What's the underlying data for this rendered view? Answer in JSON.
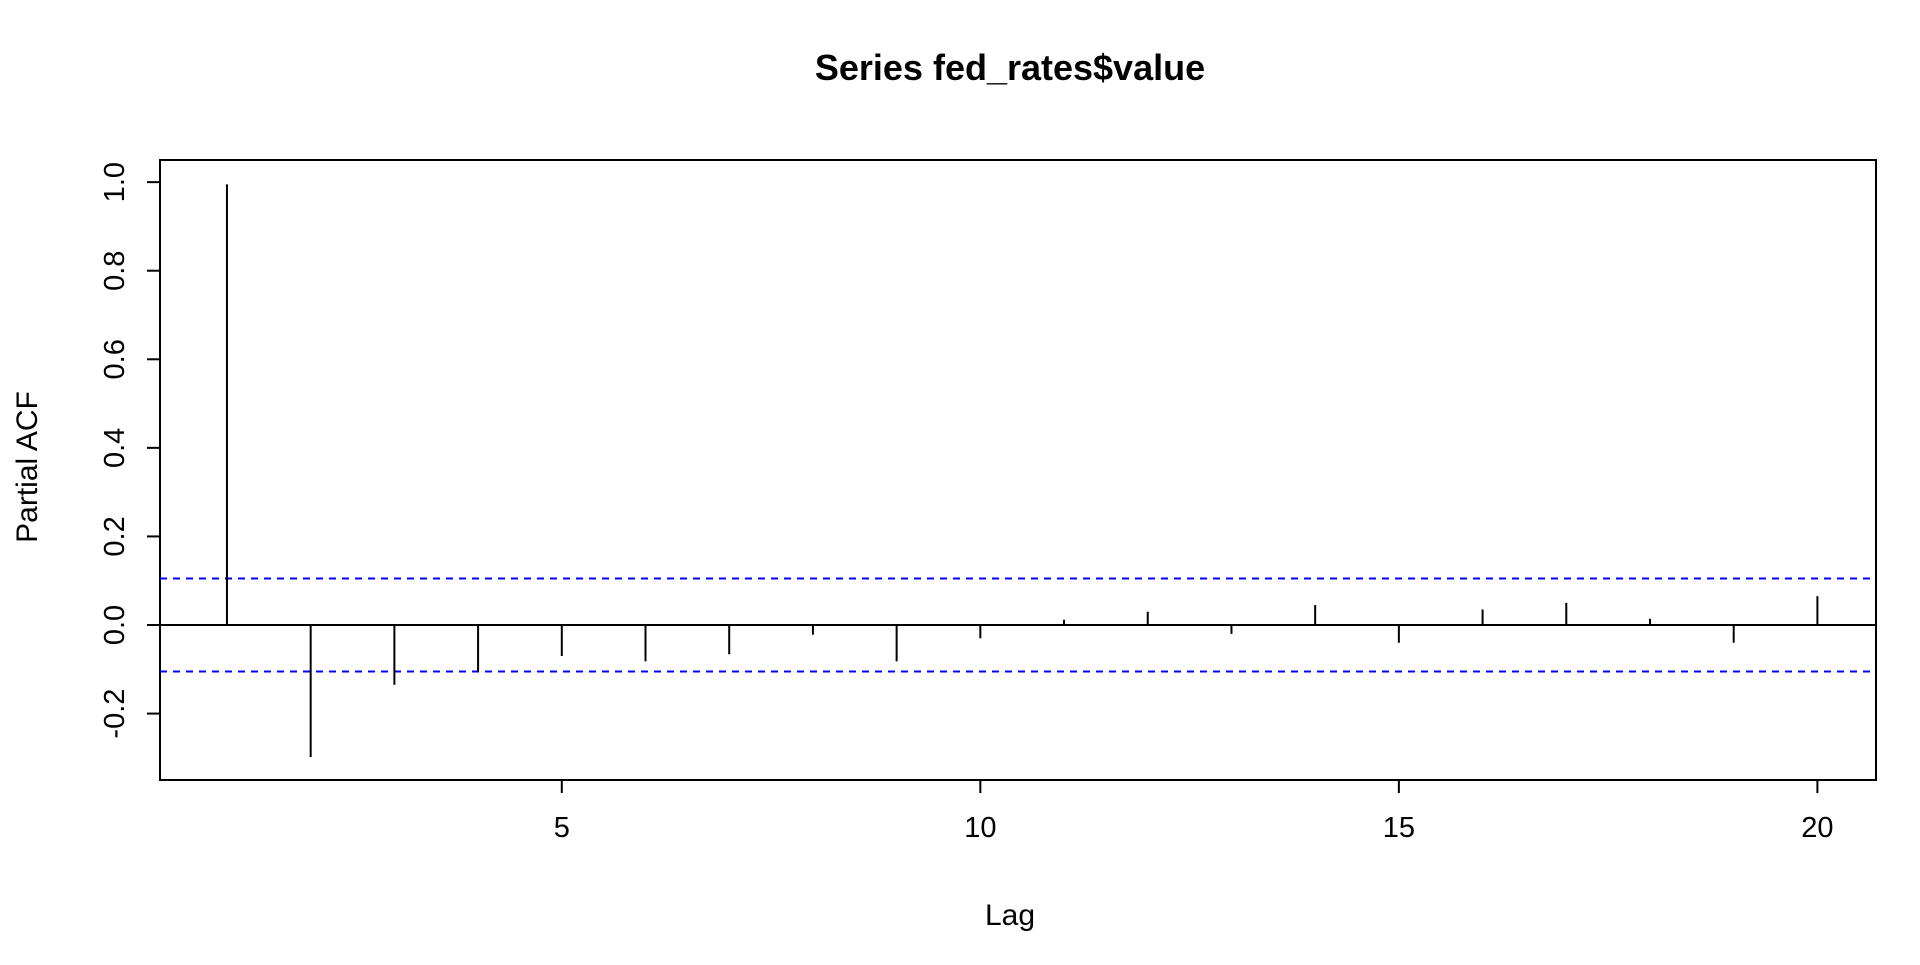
{
  "chart_data": {
    "type": "bar",
    "title": "Series  fed_rates$value",
    "xlabel": "Lag",
    "ylabel": "Partial ACF",
    "x": [
      1,
      2,
      3,
      4,
      5,
      6,
      7,
      8,
      9,
      10,
      11,
      12,
      13,
      14,
      15,
      16,
      17,
      18,
      19,
      20
    ],
    "values": [
      0.995,
      -0.298,
      -0.135,
      -0.107,
      -0.07,
      -0.082,
      -0.066,
      -0.022,
      -0.082,
      -0.03,
      0.012,
      0.03,
      -0.02,
      0.045,
      -0.04,
      0.035,
      0.05,
      0.014,
      -0.04,
      0.065
    ],
    "ci": [
      0.105,
      -0.105
    ],
    "xlim": [
      0.2,
      20.7
    ],
    "ylim": [
      -0.35,
      1.05
    ],
    "x_ticks": [
      5,
      10,
      15,
      20
    ],
    "x_tick_labels": [
      "5",
      "10",
      "15",
      "20"
    ],
    "y_ticks": [
      -0.2,
      0,
      0.2,
      0.4,
      0.6,
      0.8,
      1
    ],
    "y_tick_labels": [
      "-0.2",
      "0.0",
      "0.2",
      "0.4",
      "0.6",
      "0.8",
      "1.0"
    ],
    "ci_color": "#0000ff",
    "line_color": "#000000",
    "grid": false
  }
}
